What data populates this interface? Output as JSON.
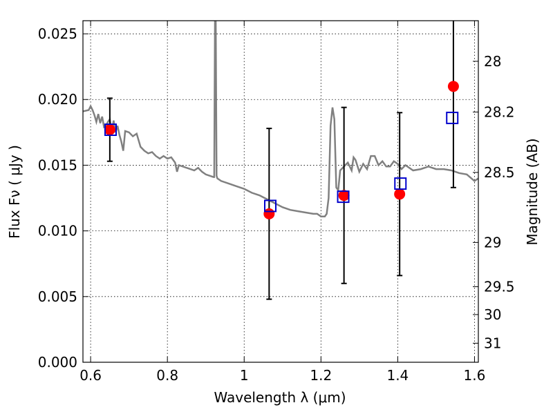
{
  "chart_data": {
    "type": "scatter",
    "title": "",
    "xlabel": "Wavelength  λ (μm)",
    "ylabel": "Flux  Fν  ( μJy )",
    "y2label": "Magnitude (AB)",
    "xlim": [
      0.58,
      1.61
    ],
    "ylim": [
      0.0,
      0.026
    ],
    "grid": true,
    "x_ticks": [
      0.6,
      0.8,
      1.0,
      1.2,
      1.4,
      1.6
    ],
    "x_tick_labels": [
      "0.6",
      "0.8",
      "1",
      "1.2",
      "1.4",
      "1.6"
    ],
    "y_ticks": [
      0.0,
      0.005,
      0.01,
      0.015,
      0.02,
      0.025
    ],
    "y_tick_labels": [
      "0.000",
      "0.005",
      "0.010",
      "0.015",
      "0.020",
      "0.025"
    ],
    "y2_ticks": [
      {
        "label": "28",
        "flux": 0.02291
      },
      {
        "label": "28.2",
        "flux": 0.01905
      },
      {
        "label": "28.5",
        "flux": 0.01445
      },
      {
        "label": "29",
        "flux": 0.00912
      },
      {
        "label": "29.5",
        "flux": 0.00575
      },
      {
        "label": "30",
        "flux": 0.00363
      },
      {
        "label": "31",
        "flux": 0.00145
      }
    ],
    "colors": {
      "model": "#808080",
      "observed": "#ff0000",
      "model_photometry": "#0000cc",
      "errorbar": "#000000"
    },
    "series": [
      {
        "type": "line",
        "x": [
          0.58,
          0.595,
          0.6,
          0.605,
          0.61,
          0.615,
          0.62,
          0.625,
          0.63,
          0.635,
          0.64,
          0.645,
          0.65,
          0.655,
          0.66,
          0.665,
          0.67,
          0.675,
          0.68,
          0.685,
          0.69,
          0.7,
          0.71,
          0.72,
          0.73,
          0.74,
          0.75,
          0.76,
          0.77,
          0.78,
          0.79,
          0.8,
          0.81,
          0.82,
          0.825,
          0.83,
          0.84,
          0.85,
          0.86,
          0.87,
          0.88,
          0.89,
          0.9,
          0.91,
          0.92,
          0.922,
          0.924,
          0.926,
          0.928,
          0.93,
          0.94,
          0.96,
          0.98,
          1.0,
          1.02,
          1.04,
          1.06,
          1.08,
          1.1,
          1.12,
          1.14,
          1.16,
          1.18,
          1.19,
          1.2,
          1.21,
          1.215,
          1.22,
          1.225,
          1.23,
          1.235,
          1.24,
          1.245,
          1.25,
          1.26,
          1.27,
          1.28,
          1.285,
          1.29,
          1.3,
          1.31,
          1.32,
          1.33,
          1.34,
          1.35,
          1.36,
          1.37,
          1.38,
          1.39,
          1.4,
          1.41,
          1.42,
          1.44,
          1.46,
          1.48,
          1.5,
          1.52,
          1.54,
          1.56,
          1.58,
          1.6,
          1.61
        ],
        "y": [
          0.0191,
          0.0192,
          0.0195,
          0.0192,
          0.0188,
          0.0183,
          0.0189,
          0.0182,
          0.0187,
          0.0179,
          0.018,
          0.0183,
          0.0185,
          0.0176,
          0.0184,
          0.0175,
          0.018,
          0.0173,
          0.0168,
          0.0161,
          0.0176,
          0.0175,
          0.0172,
          0.0174,
          0.0164,
          0.0161,
          0.0159,
          0.016,
          0.0157,
          0.0155,
          0.0157,
          0.0155,
          0.0156,
          0.0152,
          0.0145,
          0.015,
          0.0149,
          0.0148,
          0.0147,
          0.0146,
          0.0148,
          0.0145,
          0.0143,
          0.0142,
          0.0141,
          0.0141,
          0.026,
          0.026,
          0.0142,
          0.014,
          0.0138,
          0.0136,
          0.0134,
          0.0132,
          0.0129,
          0.0127,
          0.0124,
          0.0121,
          0.0118,
          0.0116,
          0.0115,
          0.0114,
          0.0113,
          0.0113,
          0.0111,
          0.0111,
          0.0113,
          0.0125,
          0.018,
          0.0194,
          0.0185,
          0.0133,
          0.0131,
          0.0146,
          0.0149,
          0.0152,
          0.0146,
          0.0156,
          0.0154,
          0.0145,
          0.0151,
          0.0147,
          0.0157,
          0.0157,
          0.015,
          0.0153,
          0.0149,
          0.0149,
          0.0153,
          0.0151,
          0.0147,
          0.015,
          0.0146,
          0.0147,
          0.0149,
          0.0147,
          0.0147,
          0.0146,
          0.0144,
          0.0143,
          0.0138,
          0.014
        ]
      },
      {
        "type": "scatter",
        "marker": "circle",
        "x": [
          0.65,
          1.065,
          1.26,
          1.405,
          1.545
        ],
        "y": [
          0.0177,
          0.0113,
          0.0127,
          0.0128,
          0.021
        ],
        "yerr": [
          0.0024,
          0.0065,
          0.0067,
          0.0062,
          0.0077
        ]
      },
      {
        "type": "scatter",
        "marker": "open-square",
        "x": [
          0.652,
          1.068,
          1.258,
          1.407,
          1.542
        ],
        "y": [
          0.0177,
          0.0119,
          0.0126,
          0.0136,
          0.0186
        ]
      }
    ]
  }
}
